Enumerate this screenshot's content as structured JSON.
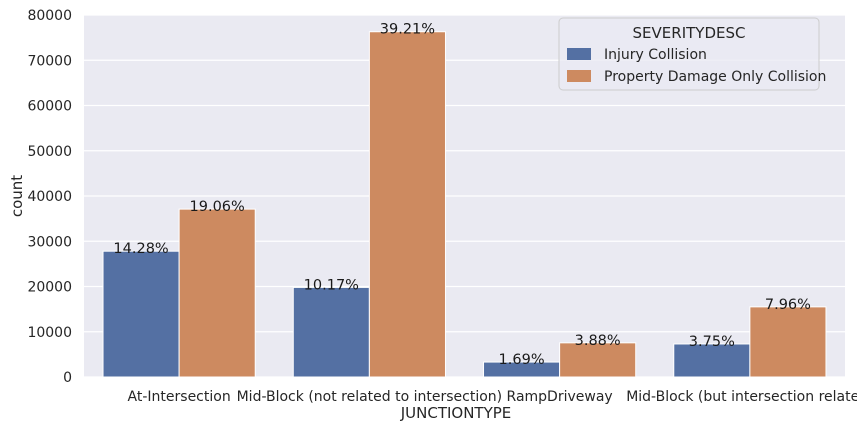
{
  "chart_data": {
    "type": "bar",
    "title": "",
    "xlabel": "JUNCTIONTYPE",
    "ylabel": "count",
    "ylim": [
      0,
      80000
    ],
    "yticks": [
      0,
      10000,
      20000,
      30000,
      40000,
      50000,
      60000,
      70000,
      80000
    ],
    "grid": true,
    "legend": {
      "title": "SEVERITYDESC",
      "placement": "top-right"
    },
    "categories": [
      "At-Intersection",
      "Mid-Block (not related to intersection)",
      "RampDriveway",
      "Mid-Block (but intersection related)"
    ],
    "series": [
      {
        "name": "Injury Collision",
        "color": "#5470a3",
        "values": [
          27800,
          19800,
          3300,
          7300
        ],
        "labels": [
          "14.28%",
          "10.17%",
          "1.69%",
          "3.75%"
        ]
      },
      {
        "name": "Property Damage Only Collision",
        "color": "#cd8a60",
        "values": [
          37100,
          76300,
          7550,
          15500
        ],
        "labels": [
          "19.06%",
          "39.21%",
          "3.88%",
          "7.96%"
        ]
      }
    ]
  }
}
